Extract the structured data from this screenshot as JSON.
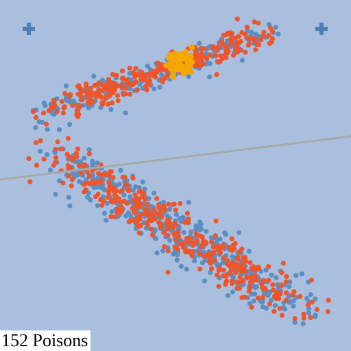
{
  "status": {
    "text": "152 Poisons"
  },
  "icons": {
    "left_marker": "plus-icon",
    "right_marker": "plus-icon"
  },
  "colors": {
    "background": "#a9bfdd",
    "blue_points": "#5b8fc3",
    "orange_points": "#f0552a",
    "highlight_points": "#f5a800",
    "boundary_line": "#a8a8a8",
    "marker": "#4f7fb4"
  },
  "point_groups": [
    {
      "name": "upper-blue",
      "color": "blue",
      "count": 220,
      "cluster": "upper"
    },
    {
      "name": "upper-orange",
      "color": "orange",
      "count": 260,
      "cluster": "upper"
    },
    {
      "name": "upper-highlight",
      "color": "highlight",
      "count": 60,
      "cluster": "highlight"
    },
    {
      "name": "lower-blue",
      "color": "blue",
      "count": 430,
      "cluster": "lower"
    },
    {
      "name": "lower-orange",
      "color": "orange",
      "count": 360,
      "cluster": "lower"
    }
  ]
}
